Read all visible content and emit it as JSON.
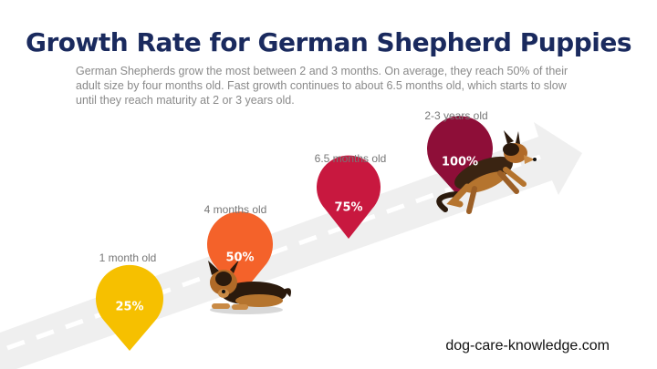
{
  "title": "Growth Rate for German Shepherd Puppies",
  "intro": "German Shepherds grow the most between 2 and 3 months.  On average, they reach 50% of their adult size by four months old. Fast growth continues to about 6.5 months old, which starts to slow until they reach maturity at 2 or 3 years old.",
  "stages": [
    {
      "label": "1 month old",
      "percent": "25%",
      "color": "#f6c000"
    },
    {
      "label": "4 months old",
      "percent": "50%",
      "color": "#f4622a"
    },
    {
      "label": "6.5 months old",
      "percent": "75%",
      "color": "#c8183f"
    },
    {
      "label": "2-3 years old",
      "percent": "100%",
      "color": "#8e0e38"
    }
  ],
  "icons": {
    "puppy": "german-shepherd-puppy-icon",
    "adult": "running-german-shepherd-icon",
    "arrow": "growth-road-arrow-icon"
  },
  "footer": "dog-care-knowledge.com"
}
